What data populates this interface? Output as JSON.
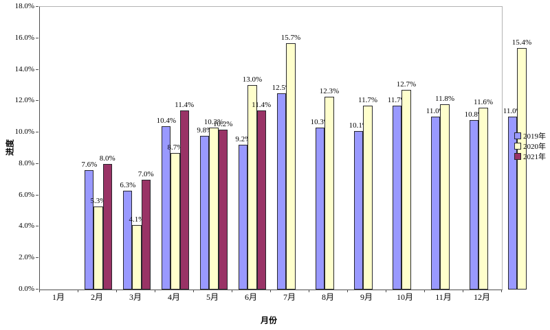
{
  "chart_data": {
    "type": "bar",
    "title": "",
    "xlabel": "月份",
    "ylabel": "进度",
    "ylim": [
      0,
      18
    ],
    "ytick_step": 2,
    "ytick_labels": [
      "0.0%",
      "2.0%",
      "4.0%",
      "6.0%",
      "8.0%",
      "10.0%",
      "12.0%",
      "14.0%",
      "16.0%",
      "18.0%"
    ],
    "grid": false,
    "data_labels": true,
    "legend_position": "right",
    "categories": [
      "1月",
      "2月",
      "3月",
      "4月",
      "5月",
      "6月",
      "7月",
      "8月",
      "9月",
      "10月",
      "11月",
      "12月"
    ],
    "series": [
      {
        "name": "2019年",
        "color": "#9999FF",
        "values": [
          7.6,
          6.3,
          10.4,
          9.8,
          9.2,
          12.5,
          10.3,
          10.1,
          11.7,
          11.0,
          10.8,
          11.0
        ]
      },
      {
        "name": "2020年",
        "color": "#FFFFCC",
        "values": [
          5.3,
          4.1,
          8.7,
          10.3,
          13.0,
          15.7,
          12.3,
          11.7,
          12.7,
          11.8,
          11.6,
          15.4
        ]
      },
      {
        "name": "2021年",
        "color": "#993366",
        "values": [
          8.0,
          7.0,
          11.4,
          10.2,
          11.4,
          null,
          null,
          null,
          null,
          null,
          null,
          null
        ]
      }
    ],
    "colors": {
      "axis_line": "#4d4d4d",
      "plot_border": "#b3b3b3",
      "bar_border": "#26262b"
    }
  }
}
